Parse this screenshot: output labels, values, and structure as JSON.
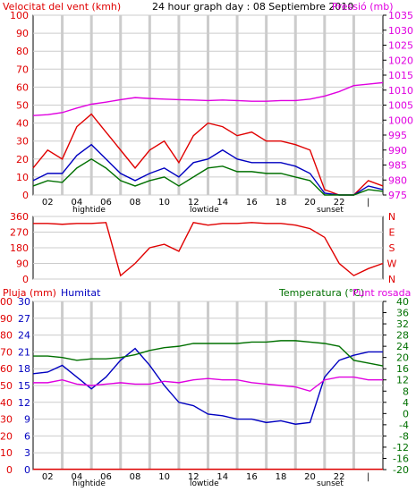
{
  "header": {
    "wind_title": "Velocitat del vent (kmh)",
    "center_title": "24 hour graph day : 08 Septiembre 2010",
    "pressure_title": "Pressió (mb)"
  },
  "lower_header": {
    "rain_title": "Pluja (mm)",
    "humidity_title": "Humitat",
    "temp_title": "Temperatura (°C)",
    "dew_title": "Punt rosada"
  },
  "markers": {
    "hightide": "hightide",
    "lowtide": "lowtide",
    "sunset": "sunset"
  },
  "colors": {
    "red": "#e00000",
    "blue": "#0000c0",
    "green": "#007000",
    "magenta": "#e000e0",
    "grid": "#cccccc",
    "frame": "#000000"
  },
  "chart_data": [
    {
      "type": "line",
      "id": "wind",
      "x_ticks": [
        "02",
        "04",
        "06",
        "08",
        "10",
        "12",
        "14",
        "16",
        "18",
        "20",
        "22",
        "|"
      ],
      "ylim": [
        0,
        100
      ],
      "y_ticks": [
        0,
        10,
        20,
        30,
        40,
        50,
        60,
        70,
        80,
        90,
        100
      ],
      "y2lim": [
        975,
        1035
      ],
      "y2_ticks": [
        975,
        980,
        985,
        990,
        995,
        1000,
        1005,
        1010,
        1015,
        1020,
        1025,
        1030,
        1035
      ],
      "x": [
        0,
        1,
        2,
        3,
        4,
        5,
        6,
        7,
        8,
        9,
        10,
        11,
        12,
        13,
        14,
        15,
        16,
        17,
        18,
        19,
        20,
        21,
        22,
        23,
        24
      ],
      "series": [
        {
          "key": "gust",
          "color": "#e00000",
          "values": [
            15,
            25,
            20,
            38,
            45,
            35,
            25,
            15,
            25,
            30,
            18,
            33,
            40,
            38,
            33,
            35,
            30,
            30,
            28,
            25,
            3,
            0,
            0,
            8,
            5
          ]
        },
        {
          "key": "avg",
          "color": "#0000c0",
          "values": [
            8,
            12,
            12,
            22,
            28,
            20,
            12,
            8,
            12,
            15,
            10,
            18,
            20,
            25,
            20,
            18,
            18,
            18,
            16,
            12,
            1,
            0,
            0,
            5,
            3
          ]
        },
        {
          "key": "min",
          "color": "#007000",
          "values": [
            5,
            8,
            7,
            15,
            20,
            15,
            8,
            5,
            8,
            10,
            5,
            10,
            15,
            16,
            13,
            13,
            12,
            12,
            10,
            8,
            0,
            0,
            0,
            3,
            2
          ]
        },
        {
          "key": "pressure",
          "axis": "right",
          "color": "#e000e0",
          "values": [
            1001.5,
            1001.8,
            1002.5,
            1004,
            1005.3,
            1006,
            1006.8,
            1007.5,
            1007.2,
            1007,
            1006.8,
            1006.7,
            1006.5,
            1006.7,
            1006.5,
            1006.3,
            1006.3,
            1006.5,
            1006.5,
            1007,
            1008,
            1009.5,
            1011.5,
            1012,
            1012.5
          ]
        }
      ]
    },
    {
      "type": "line",
      "id": "direction",
      "ylim": [
        0,
        360
      ],
      "y_ticks": [
        0,
        90,
        180,
        270,
        360
      ],
      "right_labels": [
        "N",
        "W",
        "S",
        "E",
        "N"
      ],
      "x": [
        0,
        1,
        2,
        3,
        4,
        5,
        6,
        7,
        8,
        9,
        10,
        11,
        12,
        13,
        14,
        15,
        16,
        17,
        18,
        19,
        20,
        21,
        22,
        23,
        24
      ],
      "series": [
        {
          "key": "dir",
          "color": "#e00000",
          "values": [
            320,
            320,
            315,
            320,
            320,
            325,
            20,
            90,
            180,
            200,
            160,
            325,
            310,
            320,
            320,
            325,
            320,
            320,
            310,
            290,
            240,
            90,
            20,
            60,
            90
          ]
        }
      ]
    },
    {
      "type": "line",
      "id": "lower",
      "x_ticks": [
        "02",
        "04",
        "06",
        "08",
        "10",
        "12",
        "14",
        "16",
        "18",
        "20",
        "22",
        "|"
      ],
      "left_axis_rain": [
        0,
        3,
        6,
        9,
        12,
        15,
        18,
        21,
        24,
        27,
        30
      ],
      "left_axis_humidity": [
        0,
        10,
        20,
        30,
        40,
        50,
        60,
        70,
        80,
        90,
        100
      ],
      "right_axis_temp": [
        -20,
        -16,
        -12,
        -8,
        -4,
        0,
        4,
        8,
        12,
        16,
        20,
        24,
        28,
        32,
        36,
        40
      ],
      "x": [
        0,
        1,
        2,
        3,
        4,
        5,
        6,
        7,
        8,
        9,
        10,
        11,
        12,
        13,
        14,
        15,
        16,
        17,
        18,
        19,
        20,
        21,
        22,
        23,
        24
      ],
      "series": [
        {
          "key": "rain",
          "color": "#e00000",
          "values": [
            0.2,
            0.2,
            0.2,
            0.2,
            0.2,
            0.2,
            0.2,
            0.2,
            0.2,
            0.2,
            0.2,
            0.2,
            0.2,
            0.2,
            0.2,
            0.2,
            0.2,
            0.2,
            0.2,
            0.2,
            0.2,
            0.2,
            0.2,
            0.2,
            0.2
          ]
        },
        {
          "key": "humidity",
          "color": "#0000c0",
          "values": [
            57,
            58,
            62,
            55,
            48,
            55,
            65,
            72,
            62,
            50,
            40,
            38,
            33,
            32,
            30,
            30,
            28,
            29,
            27,
            28,
            55,
            65,
            68,
            70,
            70
          ]
        },
        {
          "key": "temperature",
          "color": "#007000",
          "values": [
            20.5,
            20.5,
            20,
            19,
            19.5,
            19.5,
            20,
            21,
            22.5,
            23.5,
            24,
            25,
            25,
            25,
            25,
            25.5,
            25.5,
            26,
            26,
            25.5,
            25,
            24,
            19,
            18,
            17
          ]
        },
        {
          "key": "dew",
          "color": "#e000e0",
          "values": [
            11,
            11,
            12,
            10.5,
            10,
            10.5,
            11,
            10.5,
            10.5,
            11.5,
            11,
            12,
            12.5,
            12,
            12,
            11,
            10.5,
            10,
            9.5,
            8,
            12,
            13,
            13,
            12,
            12
          ]
        }
      ]
    }
  ]
}
